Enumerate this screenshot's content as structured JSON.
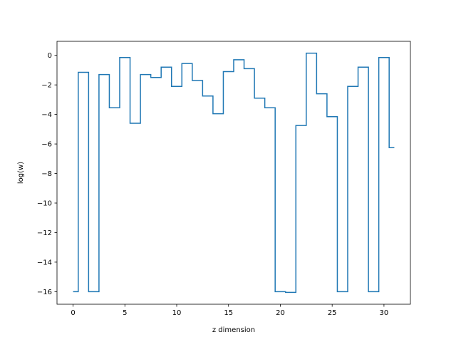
{
  "chart_data": {
    "type": "line",
    "drawstyle": "steps-mid",
    "xlabel": "z dimension",
    "ylabel": "log(w)",
    "xlim": [
      -1.55,
      32.55
    ],
    "ylim": [
      -16.85,
      0.95
    ],
    "xticks": [
      0,
      5,
      10,
      15,
      20,
      25,
      30
    ],
    "xtick_labels": [
      "0",
      "5",
      "10",
      "15",
      "20",
      "25",
      "30"
    ],
    "yticks": [
      0,
      -2,
      -4,
      -6,
      -8,
      -10,
      -12,
      -14,
      -16
    ],
    "ytick_labels": [
      "0",
      "−2",
      "−4",
      "−6",
      "−8",
      "−10",
      "−12",
      "−14",
      "−16"
    ],
    "grid": false,
    "series": [
      {
        "color": "#1f77b4",
        "x": [
          0,
          1,
          2,
          3,
          4,
          5,
          6,
          7,
          8,
          9,
          10,
          11,
          12,
          13,
          14,
          15,
          16,
          17,
          18,
          19,
          20,
          21,
          22,
          23,
          24,
          25,
          26,
          27,
          28,
          29,
          30,
          31
        ],
        "y": [
          -16.0,
          -1.15,
          -16.0,
          -1.3,
          -3.55,
          -0.15,
          -4.6,
          -1.3,
          -1.5,
          -0.8,
          -2.1,
          -0.55,
          -1.7,
          -2.75,
          -3.95,
          -1.1,
          -0.3,
          -0.9,
          -2.9,
          -3.55,
          -16.0,
          -16.05,
          -4.75,
          0.15,
          -2.6,
          -4.15,
          -16.0,
          -2.1,
          -0.8,
          -16.0,
          -0.15,
          -6.25
        ]
      }
    ]
  }
}
